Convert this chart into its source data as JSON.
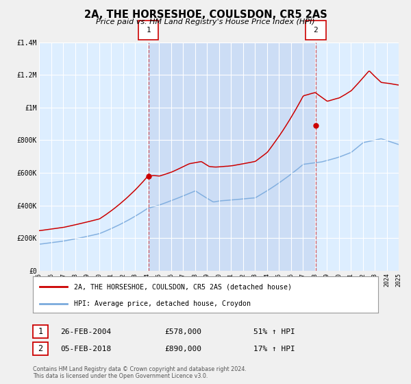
{
  "title": "2A, THE HORSESHOE, COULSDON, CR5 2AS",
  "subtitle": "Price paid vs. HM Land Registry's House Price Index (HPI)",
  "legend_line1": "2A, THE HORSESHOE, COULSDON, CR5 2AS (detached house)",
  "legend_line2": "HPI: Average price, detached house, Croydon",
  "marker1_date": "26-FEB-2004",
  "marker1_price": 578000,
  "marker1_hpi": "51% ↑ HPI",
  "marker1_year": 2004.12,
  "marker2_date": "05-FEB-2018",
  "marker2_price": 890000,
  "marker2_hpi": "17% ↑ HPI",
  "marker2_year": 2018.08,
  "xmin": 1995,
  "xmax": 2025,
  "ymin": 0,
  "ymax": 1400000,
  "yticks": [
    0,
    200000,
    400000,
    600000,
    800000,
    1000000,
    1200000,
    1400000
  ],
  "ytick_labels": [
    "£0",
    "£200K",
    "£400K",
    "£600K",
    "£800K",
    "£1M",
    "£1.2M",
    "£1.4M"
  ],
  "red_color": "#cc0000",
  "blue_color": "#7aaadd",
  "bg_color": "#ddeeff",
  "shade_color": "#ccddf5",
  "grid_color": "#ffffff",
  "plot_bg": "#ddeeff",
  "outer_bg": "#f0f0f0",
  "footer": "Contains HM Land Registry data © Crown copyright and database right 2024.\nThis data is licensed under the Open Government Licence v3.0."
}
